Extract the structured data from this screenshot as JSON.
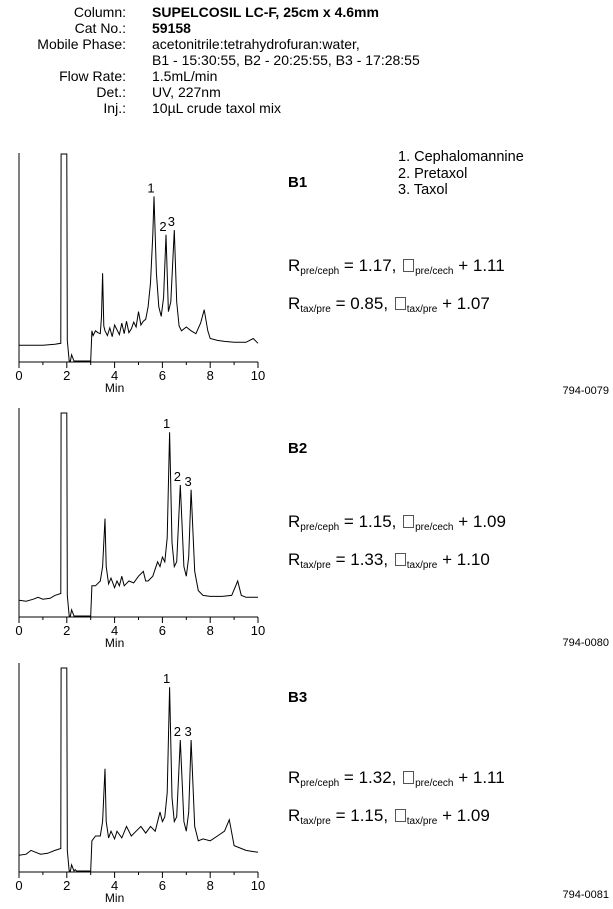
{
  "header": [
    {
      "label": "Column:",
      "value": "SUPELCOSIL LC-F, 25cm x 4.6mm",
      "bold": true
    },
    {
      "label": "Cat No.:",
      "value": "59158",
      "bold": true
    },
    {
      "label": "Mobile Phase:",
      "value": "acetonitrile:tetrahydrofuran:water,",
      "bold": false
    },
    {
      "label": "",
      "value": "B1 - 15:30:55, B2 - 20:25:55, B3 - 17:28:55",
      "bold": false
    },
    {
      "label": "Flow Rate:",
      "value": "1.5mL/min",
      "bold": false
    },
    {
      "label": "Det.:",
      "value": "UV, 227nm",
      "bold": false
    },
    {
      "label": "Inj.:",
      "value": "10µL crude taxol mix",
      "bold": false
    }
  ],
  "legend": [
    "1. Cephalomannine",
    "2.  Pretaxol",
    "3.  Taxol"
  ],
  "chart_data": [
    {
      "type": "line",
      "panel": "B1",
      "code": "794-0079",
      "xlabel": "Min",
      "xticks": [
        "0",
        "2",
        "4",
        "6",
        "8",
        "10"
      ],
      "xlim": [
        0,
        10
      ],
      "peak_labels": [
        {
          "text": "1",
          "x": 5.65
        },
        {
          "text": "2",
          "x": 6.15
        },
        {
          "text": "3",
          "x": 6.5
        }
      ],
      "x": [
        0,
        0.5,
        1,
        1.5,
        1.75,
        1.76,
        2.0,
        2.02,
        2.1,
        2.15,
        2.2,
        2.3,
        2.35,
        2.4,
        2.5,
        2.6,
        2.7,
        2.72,
        3.0,
        3.05,
        3.1,
        3.2,
        3.3,
        3.4,
        3.45,
        3.5,
        3.55,
        3.6,
        3.7,
        3.8,
        3.9,
        4.0,
        4.2,
        4.3,
        4.4,
        4.5,
        4.6,
        4.7,
        4.8,
        4.9,
        5.0,
        5.1,
        5.2,
        5.3,
        5.4,
        5.5,
        5.6,
        5.65,
        5.75,
        5.85,
        5.95,
        6.05,
        6.15,
        6.25,
        6.35,
        6.5,
        6.6,
        6.7,
        6.8,
        7.0,
        7.2,
        7.4,
        7.6,
        7.75,
        7.9,
        8.0,
        8.3,
        8.6,
        9.0,
        9.5,
        9.8,
        10.0
      ],
      "y": [
        0.5,
        0.5,
        0.5,
        0.6,
        0.7,
        21,
        21,
        1.0,
        -2.5,
        -2.0,
        -0.5,
        -2.5,
        -1.5,
        -2.5,
        -1.8,
        -2.5,
        -2.6,
        -2.6,
        -2.6,
        2.0,
        1.5,
        2.0,
        1.8,
        1.7,
        3.5,
        8.0,
        2.5,
        2.0,
        1.5,
        2.3,
        1.4,
        2.6,
        1.6,
        2.8,
        1.7,
        3.0,
        1.8,
        2.2,
        2.9,
        2.4,
        4.0,
        2.6,
        3.0,
        3.2,
        4.5,
        7.0,
        12.0,
        16.0,
        8.0,
        4.5,
        3.5,
        5.5,
        12.0,
        4.0,
        5.0,
        12.5,
        5.0,
        2.5,
        2.0,
        2.4,
        2.0,
        1.7,
        2.8,
        4.2,
        2.0,
        1.2,
        1.0,
        0.9,
        0.8,
        0.8,
        1.2,
        0.7
      ]
    },
    {
      "type": "line",
      "panel": "B2",
      "code": "794-0080",
      "xlabel": "Min",
      "xticks": [
        "0",
        "2",
        "4",
        "6",
        "8",
        "10"
      ],
      "xlim": [
        0,
        10
      ],
      "peak_labels": [
        {
          "text": "1",
          "x": 6.3
        },
        {
          "text": "2",
          "x": 6.75
        },
        {
          "text": "3",
          "x": 7.2
        }
      ],
      "x": [
        0,
        0.3,
        0.6,
        0.8,
        1.0,
        1.3,
        1.5,
        1.75,
        1.76,
        2.0,
        2.02,
        2.1,
        2.15,
        2.2,
        2.3,
        2.35,
        2.4,
        2.5,
        2.6,
        2.7,
        2.72,
        3.0,
        3.05,
        3.2,
        3.4,
        3.5,
        3.6,
        3.65,
        3.75,
        3.85,
        4.0,
        4.1,
        4.2,
        4.3,
        4.4,
        4.6,
        4.8,
        5.0,
        5.2,
        5.3,
        5.4,
        5.6,
        5.8,
        5.9,
        6.0,
        6.1,
        6.2,
        6.3,
        6.4,
        6.5,
        6.6,
        6.75,
        6.9,
        7.0,
        7.1,
        7.2,
        7.35,
        7.5,
        7.7,
        8.0,
        8.5,
        8.9,
        9.15,
        9.3,
        9.5,
        9.8,
        10.0
      ],
      "y": [
        0.5,
        0.4,
        0.6,
        0.8,
        0.6,
        0.7,
        1.0,
        1.2,
        20,
        20,
        1.0,
        -2.5,
        -1.5,
        -0.5,
        -2.5,
        -1.2,
        -2.3,
        -1.2,
        -2.5,
        -2.5,
        -2.5,
        -2.5,
        2.0,
        2.0,
        2.5,
        4.0,
        9.0,
        4.0,
        2.2,
        2.8,
        1.8,
        2.5,
        2.0,
        3.0,
        2.0,
        2.5,
        2.3,
        3.0,
        3.5,
        2.5,
        2.5,
        3.0,
        4.5,
        4.0,
        5.0,
        4.5,
        7.0,
        18.0,
        6.5,
        4.0,
        4.5,
        12.5,
        4.0,
        3.0,
        5.0,
        12.0,
        3.5,
        1.5,
        1.0,
        0.9,
        0.9,
        1.0,
        2.5,
        1.0,
        0.8,
        0.8,
        0.8
      ]
    },
    {
      "type": "line",
      "panel": "B3",
      "code": "794-0081",
      "xlabel": "Min",
      "xticks": [
        "0",
        "2",
        "4",
        "6",
        "8",
        "10"
      ],
      "xlim": [
        0,
        10
      ],
      "peak_labels": [
        {
          "text": "1",
          "x": 6.3
        },
        {
          "text": "2",
          "x": 6.75
        },
        {
          "text": "3",
          "x": 7.2
        }
      ],
      "x": [
        0,
        0.3,
        0.5,
        0.7,
        0.9,
        1.2,
        1.5,
        1.75,
        1.76,
        2.0,
        2.02,
        2.1,
        2.15,
        2.2,
        2.3,
        2.35,
        2.4,
        2.5,
        2.6,
        2.7,
        2.72,
        3.0,
        3.05,
        3.2,
        3.4,
        3.5,
        3.6,
        3.65,
        3.75,
        3.85,
        4.0,
        4.1,
        4.3,
        4.5,
        4.7,
        4.9,
        5.1,
        5.3,
        5.5,
        5.7,
        5.9,
        6.0,
        6.1,
        6.2,
        6.3,
        6.4,
        6.5,
        6.6,
        6.75,
        6.9,
        7.0,
        7.1,
        7.2,
        7.35,
        7.5,
        7.7,
        8.0,
        8.3,
        8.6,
        8.8,
        9.0,
        9.5,
        10.0
      ],
      "y": [
        0.5,
        0.6,
        1.0,
        0.8,
        0.6,
        0.7,
        1.0,
        1.2,
        20,
        20,
        1.0,
        -2.5,
        -1.5,
        -0.5,
        -2.5,
        -1.0,
        -2.3,
        -1.2,
        -2.5,
        -2.5,
        -2.5,
        -2.5,
        2.0,
        2.5,
        2.5,
        4.0,
        9.5,
        4.0,
        2.3,
        3.0,
        2.2,
        3.0,
        2.3,
        3.5,
        2.5,
        3.0,
        3.5,
        2.8,
        3.5,
        3.0,
        5.0,
        4.0,
        4.5,
        7.0,
        18.0,
        6.5,
        4.0,
        4.5,
        12.5,
        4.0,
        3.0,
        5.0,
        12.5,
        3.5,
        2.0,
        2.2,
        2.0,
        2.5,
        3.0,
        4.2,
        1.5,
        1.0,
        0.8
      ]
    }
  ],
  "resolution": [
    {
      "r1": {
        "value": " = 1.17, ",
        "r_sub": "pre/ceph",
        "a_sub": "pre/cech",
        "alpha": " + 1.11"
      },
      "r2": {
        "value": " = 0.85, ",
        "r_sub": "tax/pre",
        "a_sub": "tax/pre",
        "alpha": " + 1.07"
      }
    },
    {
      "r1": {
        "value": " = 1.15, ",
        "r_sub": "pre/ceph",
        "a_sub": "pre/cech",
        "alpha": " + 1.09"
      },
      "r2": {
        "value": " = 1.33, ",
        "r_sub": "tax/pre",
        "a_sub": "tax/pre",
        "alpha": " + 1.10"
      }
    },
    {
      "r1": {
        "value": " = 1.32, ",
        "r_sub": "pre/ceph",
        "a_sub": "pre/cech",
        "alpha": " + 1.11"
      },
      "r2": {
        "value": " = 1.15, ",
        "r_sub": "tax/pre",
        "a_sub": "tax/pre",
        "alpha": " + 1.09"
      }
    }
  ],
  "symbols": {
    "r": "R"
  }
}
